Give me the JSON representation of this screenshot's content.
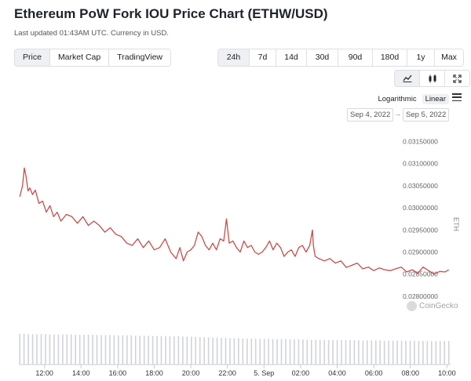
{
  "header": {
    "title": "Ethereum PoW Fork IOU Price Chart (ETHW/USD)",
    "subtitle": "Last updated 01:43AM UTC. Currency in USD."
  },
  "metric_tabs": [
    {
      "label": "Price",
      "active": true
    },
    {
      "label": "Market Cap",
      "active": false
    },
    {
      "label": "TradingView",
      "active": false
    }
  ],
  "range_tabs": [
    {
      "label": "24h",
      "active": true
    },
    {
      "label": "7d",
      "active": false
    },
    {
      "label": "14d",
      "active": false
    },
    {
      "label": "30d",
      "active": false
    },
    {
      "label": "90d",
      "active": false
    },
    {
      "label": "180d",
      "active": false
    },
    {
      "label": "1y",
      "active": false
    },
    {
      "label": "Max",
      "active": false
    }
  ],
  "view_toggles": [
    {
      "icon": "line-chart-icon",
      "active": true
    },
    {
      "icon": "candlestick-icon",
      "active": false
    },
    {
      "icon": "fullscreen-icon",
      "active": false
    }
  ],
  "scale": {
    "options": [
      "Logarithmic",
      "Linear"
    ],
    "active": "Linear"
  },
  "date_range": {
    "from": "Sep 4, 2022",
    "to": "Sep 5, 2022"
  },
  "watermark": "CoinGecko",
  "chart_data": {
    "type": "line",
    "title": "Ethereum PoW Fork IOU Price Chart (ETHW/USD)",
    "ylabel": "ETH",
    "y_axis_position": "right",
    "ylim": [
      0.02775,
      0.03165
    ],
    "yticks": [
      "0.03150000",
      "0.03100000",
      "0.03050000",
      "0.03000000",
      "0.02950000",
      "0.02900000",
      "0.02850000",
      "0.02800000"
    ],
    "yticks_values": [
      0.0315,
      0.031,
      0.0305,
      0.03,
      0.0295,
      0.029,
      0.0285,
      0.028
    ],
    "xlim": [
      10.6,
      34.2
    ],
    "xtick_labels": [
      "12:00",
      "14:00",
      "16:00",
      "18:00",
      "20:00",
      "22:00",
      "5. Sep",
      "02:00",
      "04:00",
      "06:00",
      "08:00",
      "10:00"
    ],
    "xtick_values": [
      12,
      14,
      16,
      18,
      20,
      22,
      24,
      26,
      28,
      30,
      32,
      34
    ],
    "series": [
      {
        "color": "#c0504d",
        "x": [
          10.65,
          10.8,
          10.9,
          11.0,
          11.1,
          11.2,
          11.35,
          11.5,
          11.7,
          11.9,
          12.1,
          12.3,
          12.5,
          12.7,
          12.9,
          13.2,
          13.5,
          13.8,
          14.1,
          14.4,
          14.7,
          15.0,
          15.3,
          15.6,
          15.9,
          16.2,
          16.5,
          16.8,
          17.1,
          17.4,
          17.7,
          18.0,
          18.3,
          18.6,
          18.9,
          19.2,
          19.4,
          19.6,
          19.8,
          20.0,
          20.2,
          20.4,
          20.6,
          20.8,
          21.0,
          21.2,
          21.4,
          21.6,
          21.8,
          21.95,
          22.1,
          22.3,
          22.5,
          22.7,
          22.9,
          23.1,
          23.3,
          23.5,
          23.7,
          23.9,
          24.1,
          24.3,
          24.5,
          24.7,
          24.9,
          25.1,
          25.3,
          25.5,
          25.7,
          25.9,
          26.1,
          26.3,
          26.5,
          26.65,
          26.7,
          26.8,
          27.0,
          27.3,
          27.6,
          27.9,
          28.2,
          28.5,
          28.8,
          29.1,
          29.4,
          29.7,
          30.0,
          30.3,
          30.6,
          30.9,
          31.2,
          31.5,
          31.8,
          32.1,
          32.4,
          32.7,
          33.0,
          33.3,
          33.6,
          33.9,
          34.1
        ],
        "values": [
          0.03025,
          0.0305,
          0.0309,
          0.0307,
          0.03038,
          0.03045,
          0.0303,
          0.0304,
          0.0301,
          0.03015,
          0.0299,
          0.03005,
          0.0298,
          0.0299,
          0.0297,
          0.02985,
          0.0298,
          0.02965,
          0.0298,
          0.0296,
          0.0297,
          0.0296,
          0.02945,
          0.02955,
          0.0294,
          0.02935,
          0.0292,
          0.02915,
          0.0293,
          0.0291,
          0.02925,
          0.02905,
          0.0291,
          0.0293,
          0.029,
          0.02885,
          0.0291,
          0.0288,
          0.029,
          0.02905,
          0.02915,
          0.02945,
          0.02935,
          0.02915,
          0.02905,
          0.0292,
          0.02905,
          0.0293,
          0.02925,
          0.02975,
          0.0292,
          0.02925,
          0.0291,
          0.029,
          0.02925,
          0.0291,
          0.02915,
          0.029,
          0.02895,
          0.029,
          0.0291,
          0.02925,
          0.02905,
          0.0292,
          0.0291,
          0.0289,
          0.029,
          0.02905,
          0.0289,
          0.0291,
          0.02915,
          0.029,
          0.02915,
          0.0295,
          0.02915,
          0.0289,
          0.02885,
          0.0288,
          0.02885,
          0.02875,
          0.0288,
          0.02865,
          0.0287,
          0.02875,
          0.02862,
          0.02866,
          0.02858,
          0.02864,
          0.0286,
          0.02858,
          0.02862,
          0.02866,
          0.02855,
          0.0286,
          0.02852,
          0.02866,
          0.02858,
          0.0285,
          0.02856,
          0.02855,
          0.0286
        ]
      }
    ],
    "volume": {
      "x_start": 10.65,
      "x_end": 34.1,
      "relative_values": [
        0.98,
        0.98,
        0.97,
        0.97,
        0.97,
        0.97,
        0.97,
        0.96,
        0.96,
        0.96,
        0.96,
        0.96,
        0.96,
        0.95,
        0.95,
        0.95,
        0.95,
        0.95,
        0.94,
        0.94,
        0.94,
        0.94,
        0.93,
        0.93,
        0.93,
        0.93,
        0.93,
        0.92,
        0.92,
        0.92,
        0.92,
        0.91,
        0.91,
        0.91,
        0.91,
        0.9,
        0.9,
        0.9,
        0.89,
        0.89,
        0.89,
        0.88,
        0.88,
        0.87,
        0.87,
        0.86,
        0.86,
        0.85,
        0.85,
        0.84,
        0.84,
        0.84,
        0.83,
        0.83,
        0.83,
        0.82,
        0.82,
        0.82,
        0.82,
        0.81,
        0.81,
        0.81,
        0.81,
        0.8,
        0.8,
        0.8,
        0.8,
        0.79,
        0.79,
        0.79,
        0.79,
        0.79,
        0.78,
        0.78,
        0.78,
        0.78,
        0.78,
        0.78,
        0.77,
        0.77,
        0.77,
        0.77,
        0.77,
        0.77,
        0.77,
        0.76,
        0.76,
        0.76,
        0.76,
        0.76,
        0.76,
        0.76,
        0.76,
        0.75,
        0.75,
        0.75,
        0.75,
        0.75,
        0.75,
        0.75,
        0.75
      ]
    },
    "grid": false,
    "legend": "none"
  }
}
